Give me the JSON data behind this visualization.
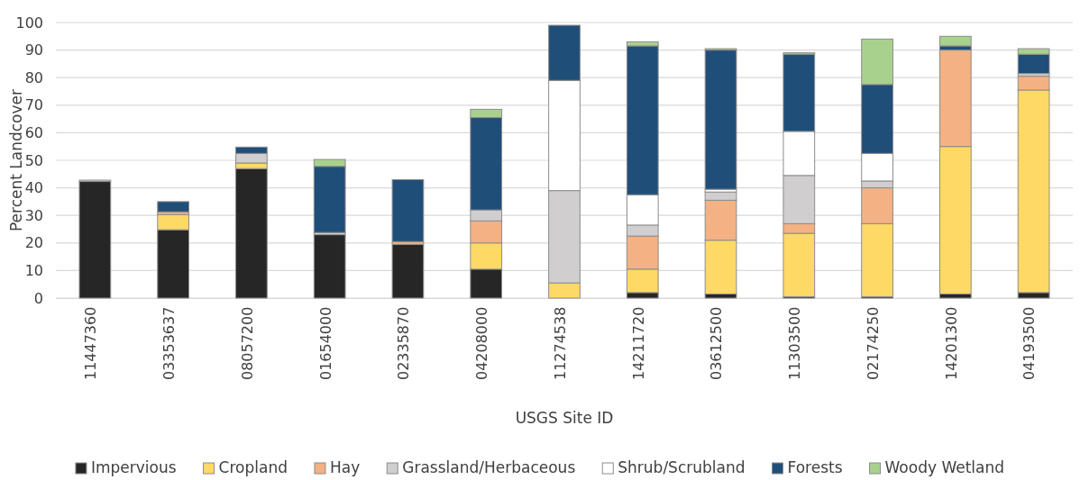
{
  "chart_data": {
    "type": "bar",
    "stacked": true,
    "xlabel": "USGS Site ID",
    "ylabel": "Percent Landcover",
    "categories": [
      "11447360",
      "03353637",
      "08057200",
      "01654000",
      "02335870",
      "04208000",
      "11274538",
      "14211720",
      "03612500",
      "11303500",
      "02174250",
      "14201300",
      "04193500"
    ],
    "ylim": [
      0,
      100
    ],
    "yticks": [
      0,
      10,
      20,
      30,
      40,
      50,
      60,
      70,
      80,
      90,
      100
    ],
    "grid": "y",
    "legend": "bottom",
    "series": [
      {
        "name": "Impervious",
        "color": "#262626",
        "values": [
          42.3,
          24.8,
          47,
          23,
          19.5,
          10.5,
          0,
          2,
          1.5,
          0.5,
          0.5,
          1.5,
          2
        ]
      },
      {
        "name": "Cropland",
        "color": "#ffd966",
        "values": [
          0,
          5.5,
          2,
          0,
          0,
          9.5,
          5.5,
          8.5,
          19.5,
          23,
          26.5,
          53.5,
          73.5
        ]
      },
      {
        "name": "Hay",
        "color": "#f4b183",
        "values": [
          0,
          1,
          0,
          0,
          1,
          8,
          0,
          12,
          14.5,
          3.5,
          13,
          35,
          5
        ]
      },
      {
        "name": "Grassland/Herbaceous",
        "color": "#d0cece",
        "values": [
          0.5,
          0,
          3.5,
          0.8,
          0,
          4,
          33.5,
          4,
          3,
          17.5,
          2.5,
          0,
          1
        ]
      },
      {
        "name": "Shrub/Scrubland",
        "color": "#ffffff",
        "values": [
          0,
          0,
          0,
          0,
          0,
          0,
          40,
          11,
          1,
          16,
          10,
          0,
          0
        ]
      },
      {
        "name": "Forests",
        "color": "#1f4e79",
        "values": [
          0,
          3.7,
          2.3,
          24,
          22.5,
          33.5,
          20,
          54,
          50.5,
          28,
          25,
          1.5,
          7
        ]
      },
      {
        "name": "Woody Wetland",
        "color": "#a9d18e",
        "values": [
          0,
          0,
          0,
          2.5,
          0,
          3,
          0,
          1.5,
          0.5,
          0.5,
          16.5,
          3.5,
          2
        ]
      }
    ]
  }
}
